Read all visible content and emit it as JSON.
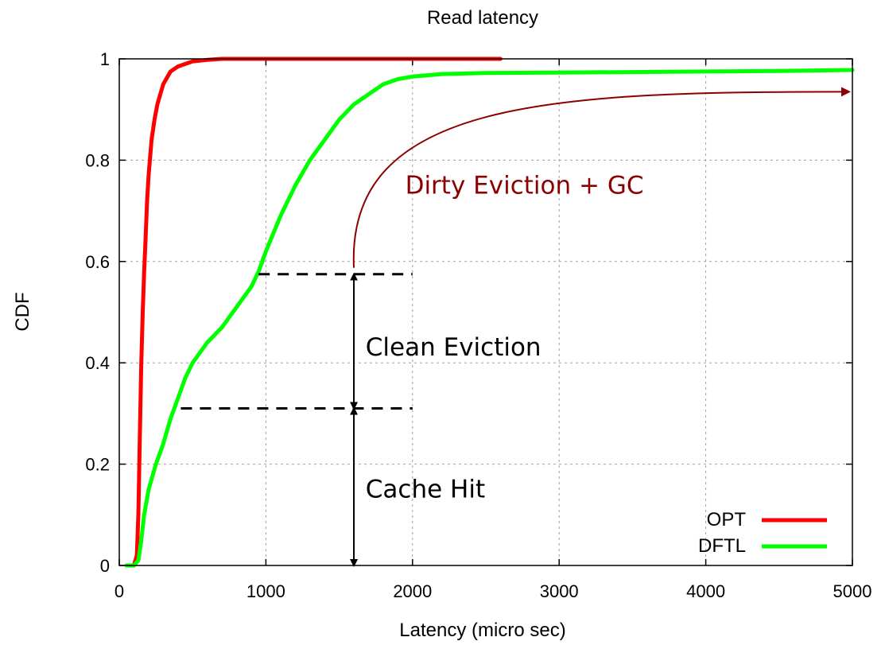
{
  "chart_data": {
    "type": "line",
    "title": "Read latency",
    "xlabel": "Latency (micro sec)",
    "ylabel": "CDF",
    "xlim": [
      0,
      5000
    ],
    "ylim": [
      0,
      1
    ],
    "xticks": [
      "0",
      "1000",
      "2000",
      "3000",
      "4000",
      "5000"
    ],
    "yticks": [
      "0",
      "0.2",
      "0.4",
      "0.6",
      "0.8",
      "1"
    ],
    "grid": true,
    "legend_position": "bottom-right",
    "colors": {
      "OPT": "#ff0000",
      "DFTL": "#00ff00",
      "annotation_dark": "#8b0000"
    },
    "series": [
      {
        "name": "OPT",
        "x": [
          50,
          100,
          120,
          130,
          140,
          150,
          160,
          170,
          180,
          190,
          200,
          220,
          240,
          260,
          280,
          300,
          350,
          400,
          450,
          500,
          600,
          700,
          1000,
          1500,
          2000,
          2600
        ],
        "y": [
          0,
          0,
          0.02,
          0.1,
          0.25,
          0.4,
          0.5,
          0.58,
          0.65,
          0.72,
          0.77,
          0.84,
          0.88,
          0.91,
          0.93,
          0.95,
          0.975,
          0.985,
          0.99,
          0.995,
          0.998,
          1,
          1,
          1,
          1,
          1
        ]
      },
      {
        "name": "DFTL",
        "x": [
          50,
          100,
          130,
          150,
          170,
          200,
          250,
          300,
          350,
          400,
          450,
          500,
          600,
          700,
          800,
          900,
          950,
          1000,
          1100,
          1200,
          1300,
          1400,
          1500,
          1600,
          1700,
          1800,
          1900,
          2000,
          2200,
          2500,
          3000,
          3500,
          4000,
          4500,
          5000
        ],
        "y": [
          0,
          0,
          0.01,
          0.05,
          0.1,
          0.15,
          0.2,
          0.24,
          0.29,
          0.33,
          0.37,
          0.4,
          0.44,
          0.47,
          0.51,
          0.55,
          0.58,
          0.62,
          0.69,
          0.75,
          0.8,
          0.84,
          0.88,
          0.91,
          0.93,
          0.95,
          0.96,
          0.965,
          0.97,
          0.972,
          0.973,
          0.974,
          0.975,
          0.976,
          0.978
        ]
      }
    ],
    "annotations": [
      {
        "text": "Dirty Eviction + GC",
        "x": 1950,
        "y": 0.75
      },
      {
        "text": "Clean Eviction",
        "x": 1680,
        "y": 0.43
      },
      {
        "text": "Cache Hit",
        "x": 1680,
        "y": 0.15
      }
    ],
    "markers": {
      "cache_hit_level": 0.31,
      "clean_eviction_level": 0.575,
      "upper_dash_x": [
        950,
        2000
      ],
      "lower_dash_x": [
        420,
        2000
      ],
      "arrow_x": 1600,
      "curve_arrow_end": [
        5000,
        0.935
      ]
    }
  }
}
